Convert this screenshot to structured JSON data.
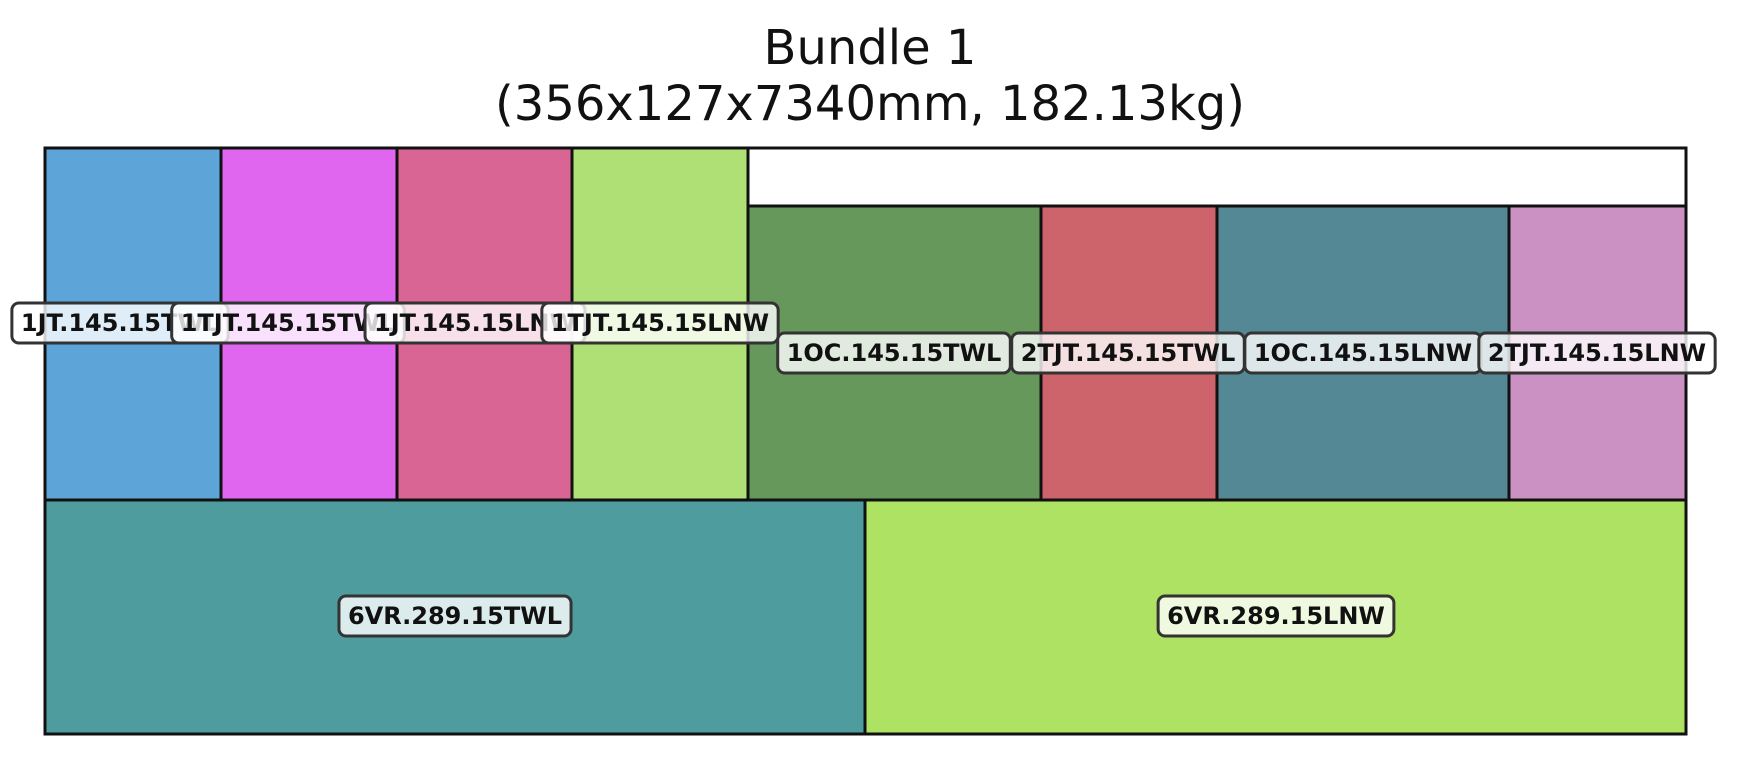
{
  "title": {
    "line1": "Bundle 1",
    "line2": "(356x127x7340mm, 182.13kg)"
  },
  "bundle": {
    "width_mm": 356,
    "height_mm": 127,
    "length_mm": 7340,
    "weight_kg": 182.13
  },
  "pieces": [
    {
      "label": "1JT.145.15TWL",
      "color": "#5DA5D9"
    },
    {
      "label": "1TJT.145.15TWL",
      "color": "#E066F0"
    },
    {
      "label": "1JT.145.15LNW",
      "color": "#D86593"
    },
    {
      "label": "1TJT.145.15LNW",
      "color": "#AEE075"
    },
    {
      "label": "1OC.145.15TWL",
      "color": "#66985B"
    },
    {
      "label": "2TJT.145.15TWL",
      "color": "#CD646C"
    },
    {
      "label": "1OC.145.15LNW",
      "color": "#548895"
    },
    {
      "label": "2TJT.145.15LNW",
      "color": "#CA91C2"
    },
    {
      "label": "6VR.289.15TWL",
      "color": "#4F9C9E"
    },
    {
      "label": "6VR.289.15LNW",
      "color": "#AEE263"
    }
  ]
}
